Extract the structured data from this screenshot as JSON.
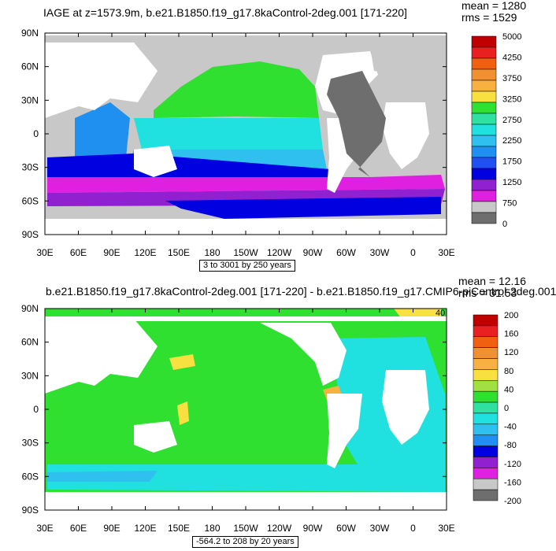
{
  "chart_data": [
    {
      "type": "heatmap",
      "title": "IAGE at z=1573.9m, b.e21.B1850.f19_g17.8kaControl-2deg.001 [171-220]",
      "mean_label": "mean = 1280",
      "rms_label": "rms = 1529",
      "subtitle": "3 to 3001 by 250 years",
      "x_ticks": [
        "30E",
        "60E",
        "90E",
        "120E",
        "150E",
        "180",
        "150W",
        "120W",
        "90W",
        "60W",
        "30W",
        "0",
        "30E"
      ],
      "y_ticks": [
        "90N",
        "60N",
        "30N",
        "0",
        "30S",
        "60S",
        "90S"
      ],
      "colorbar": {
        "labels": [
          "5000",
          "4250",
          "3750",
          "3250",
          "2750",
          "2250",
          "1750",
          "1250",
          "750",
          "0"
        ],
        "colors": [
          "#c00000",
          "#e82020",
          "#f06010",
          "#f09030",
          "#f8b040",
          "#f8e040",
          "#30e030",
          "#30e0a0",
          "#20e0e0",
          "#30c0f0",
          "#2090f0",
          "#2050f0",
          "#0000e0",
          "#9020d0",
          "#e020e0",
          "#c8c8c8",
          "#6e6e6e"
        ]
      }
    },
    {
      "type": "heatmap",
      "title": "b.e21.B1850.f19_g17.8kaControl-2deg.001 [171-220] - b.e21.B1850.f19_g17.CMIP6-piControl-2deg.001",
      "mean_label": "mean = 12.16",
      "rms_label": "rms = 31.53",
      "subtitle": "-564.2 to 208 by 20 years",
      "contour_label": "40",
      "x_ticks": [
        "30E",
        "60E",
        "90E",
        "120E",
        "150E",
        "180",
        "150W",
        "120W",
        "90W",
        "60W",
        "30W",
        "0",
        "30E"
      ],
      "y_ticks": [
        "90N",
        "60N",
        "30N",
        "0",
        "30S",
        "60S",
        "90S"
      ],
      "colorbar": {
        "labels": [
          "200",
          "160",
          "120",
          "80",
          "40",
          "0",
          "-40",
          "-80",
          "-120",
          "-160",
          "-200"
        ],
        "colors": [
          "#c00000",
          "#e82020",
          "#f06010",
          "#f09030",
          "#f8b040",
          "#f8e040",
          "#a0e040",
          "#30e030",
          "#30e0a0",
          "#20e0e0",
          "#30c0f0",
          "#2090f0",
          "#0000e0",
          "#9020d0",
          "#e020e0",
          "#c8c8c8",
          "#6e6e6e"
        ]
      }
    }
  ]
}
